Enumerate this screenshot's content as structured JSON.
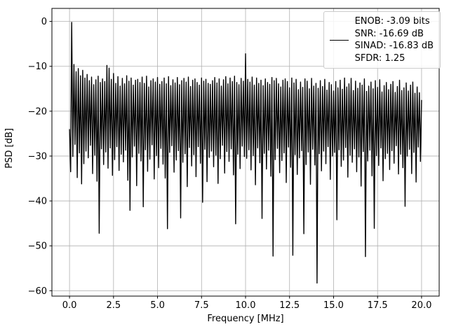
{
  "figure": {
    "background": "#ffffff"
  },
  "chart_data": {
    "type": "line",
    "title": "",
    "xlabel": "Frequency [MHz]",
    "ylabel": "PSD [dB]",
    "xlim": [
      -1,
      21
    ],
    "ylim": [
      -61.2,
      2.9
    ],
    "xticks": [
      0.0,
      2.5,
      5.0,
      7.5,
      10.0,
      12.5,
      15.0,
      17.5,
      20.0
    ],
    "xtick_labels": [
      "0.0",
      "2.5",
      "5.0",
      "7.5",
      "10.0",
      "12.5",
      "15.0",
      "17.5",
      "20.0"
    ],
    "yticks": [
      0,
      -10,
      -20,
      -30,
      -40,
      -50,
      -60
    ],
    "ytick_labels": [
      "0",
      "−10",
      "−20",
      "−30",
      "−40",
      "−50",
      "−60"
    ],
    "grid": true,
    "grid_color": "#b0b0b0",
    "spine_color": "#000000",
    "line_color": "#000000",
    "legend": {
      "position": "upper right",
      "entries": [
        "ENOB: -3.09 bits",
        "SNR: -16.69 dB",
        "SINAD: -16.83 dB",
        "SFDR: 1.25"
      ]
    },
    "notable_features": {
      "dc_peak_db": 0.0,
      "spur": {
        "x_mhz": 10.0,
        "db": -7.2
      },
      "deepest_null": {
        "x_mhz": 14.1,
        "db": -58.3
      },
      "noise_top_envelope_db": [
        -11,
        -17
      ],
      "noise_bottom_envelope_db": [
        -28,
        -37
      ]
    },
    "series": [
      {
        "name": "PSD",
        "x_start": 0,
        "x_step": 0.0625,
        "values": [
          -24.0,
          -33.5,
          -0.2,
          -30.1,
          -9.6,
          -27.4,
          -11.2,
          -34.8,
          -10.5,
          -29.3,
          -12.1,
          -36.2,
          -10.9,
          -31.7,
          -12.6,
          -28.9,
          -11.8,
          -30.4,
          -13.2,
          -27.6,
          -12.4,
          -33.9,
          -14.1,
          -29.8,
          -13.0,
          -35.6,
          -12.2,
          -47.2,
          -13.6,
          -28.4,
          -12.8,
          -31.9,
          -13.4,
          -29.1,
          -9.8,
          -32.7,
          -10.4,
          -28.2,
          -12.9,
          -34.3,
          -11.6,
          -30.8,
          -13.8,
          -27.9,
          -12.3,
          -33.2,
          -14.4,
          -29.6,
          -12.7,
          -31.3,
          -13.9,
          -28.7,
          -12.1,
          -35.4,
          -13.3,
          -42.1,
          -12.6,
          -30.2,
          -14.2,
          -27.8,
          -13.1,
          -36.6,
          -12.9,
          -29.4,
          -13.6,
          -31.1,
          -12.4,
          -41.3,
          -13.8,
          -28.6,
          -12.2,
          -33.4,
          -14.6,
          -30.7,
          -13.2,
          -27.5,
          -12.8,
          -35.1,
          -13.5,
          -29.9,
          -12.5,
          -32.6,
          -14.0,
          -28.3,
          -13.4,
          -31.8,
          -12.6,
          -34.9,
          -13.9,
          -46.2,
          -12.3,
          -29.2,
          -14.3,
          -27.7,
          -13.0,
          -33.6,
          -13.7,
          -30.9,
          -12.5,
          -28.8,
          -14.1,
          -43.8,
          -13.2,
          -31.4,
          -12.7,
          -29.5,
          -13.5,
          -36.8,
          -12.4,
          -28.1,
          -14.5,
          -32.2,
          -13.1,
          -29.7,
          -12.8,
          -34.6,
          -13.6,
          -27.9,
          -14.2,
          -31.6,
          -12.6,
          -40.3,
          -13.3,
          -28.5,
          -12.9,
          -35.7,
          -13.8,
          -30.3,
          -14.0,
          -28.9,
          -13.2,
          -32.4,
          -12.5,
          -29.8,
          -13.7,
          -36.1,
          -12.8,
          -30.6,
          -14.4,
          -27.6,
          -13.0,
          -33.8,
          -12.3,
          -29.0,
          -13.9,
          -31.2,
          -12.6,
          -28.4,
          -13.4,
          -34.2,
          -12.2,
          -45.1,
          -13.6,
          -29.6,
          -14.1,
          -32.8,
          -12.7,
          -27.8,
          -13.3,
          -30.1,
          -7.2,
          -30.5,
          -12.9,
          -28.6,
          -13.5,
          -33.1,
          -12.4,
          -29.9,
          -14.2,
          -36.4,
          -12.6,
          -28.2,
          -13.8,
          -31.5,
          -13.1,
          -43.9,
          -14.3,
          -29.4,
          -12.8,
          -32.9,
          -13.6,
          -28.7,
          -14.0,
          -34.5,
          -12.5,
          -52.3,
          -13.2,
          -30.8,
          -12.7,
          -28.3,
          -13.9,
          -33.7,
          -14.6,
          -31.0,
          -13.1,
          -29.3,
          -12.8,
          -35.9,
          -13.4,
          -28.0,
          -14.8,
          -32.5,
          -12.6,
          -52.1,
          -13.7,
          -29.7,
          -12.9,
          -34.1,
          -15.2,
          -30.4,
          -13.5,
          -28.8,
          -14.7,
          -47.3,
          -12.8,
          -31.9,
          -13.3,
          -29.1,
          -15.0,
          -36.3,
          -12.7,
          -28.5,
          -14.4,
          -32.0,
          -13.8,
          -58.3,
          -14.9,
          -29.5,
          -13.2,
          -33.3,
          -14.5,
          -28.9,
          -12.9,
          -31.7,
          -15.3,
          -27.9,
          -13.6,
          -35.2,
          -14.1,
          -30.0,
          -15.5,
          -29.2,
          -13.4,
          -44.2,
          -14.8,
          -28.6,
          -13.1,
          -32.3,
          -15.1,
          -30.9,
          -12.6,
          -28.1,
          -14.6,
          -34.7,
          -13.9,
          -29.8,
          -12.7,
          -31.4,
          -15.4,
          -28.4,
          -13.3,
          -33.5,
          -14.9,
          -30.2,
          -13.7,
          -36.7,
          -14.2,
          -29.0,
          -12.8,
          -52.4,
          -15.6,
          -31.1,
          -14.4,
          -28.7,
          -13.5,
          -34.4,
          -15.0,
          -46.1,
          -13.2,
          -29.9,
          -14.7,
          -32.1,
          -13.0,
          -28.2,
          -15.7,
          -35.5,
          -14.3,
          -30.6,
          -13.6,
          -29.4,
          -15.2,
          -33.0,
          -14.0,
          -28.8,
          -13.4,
          -31.6,
          -15.8,
          -27.7,
          -14.5,
          -34.0,
          -13.1,
          -29.6,
          -15.4,
          -32.6,
          -14.8,
          -41.2,
          -13.7,
          -30.0,
          -15.5,
          -28.5,
          -14.2,
          -33.9,
          -13.5,
          -29.2,
          -16.0,
          -35.8,
          -14.6,
          -28.0,
          -15.9,
          -31.2,
          -17.5
        ]
      }
    ]
  }
}
